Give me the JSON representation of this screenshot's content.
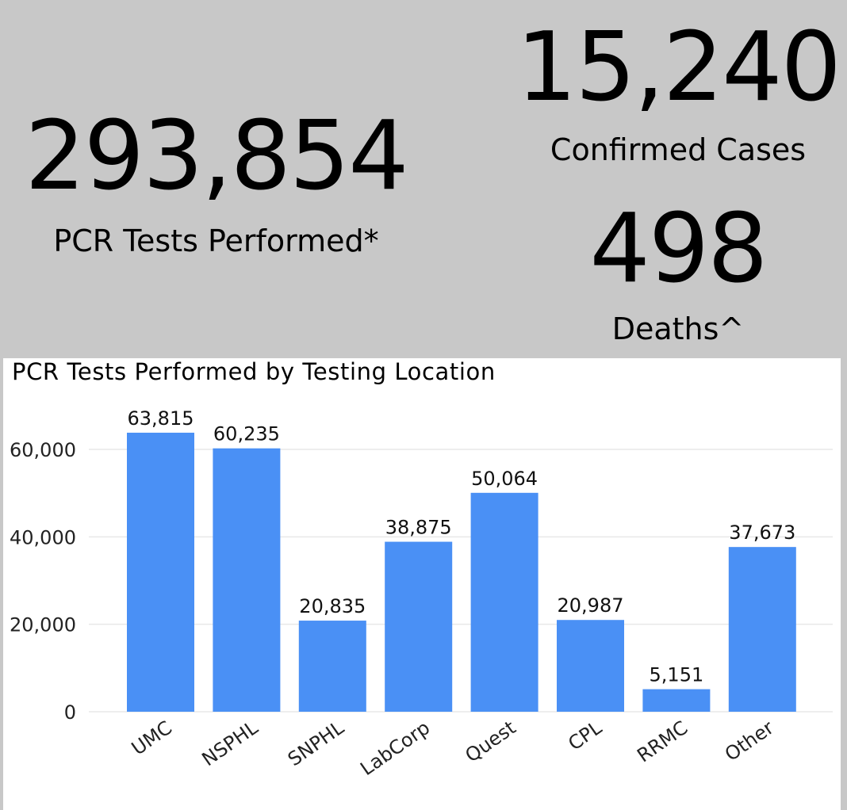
{
  "kpis": {
    "tests": {
      "value": "293,854",
      "label": "PCR Tests Performed*"
    },
    "cases": {
      "value": "15,240",
      "label": "Confirmed Cases"
    },
    "deaths": {
      "value": "498",
      "label": "Deaths^"
    }
  },
  "chart_data": {
    "type": "bar",
    "title": "PCR Tests Performed by Testing Location",
    "xlabel": "",
    "ylabel": "",
    "categories": [
      "UMC",
      "NSPHL",
      "SNPHL",
      "LabCorp",
      "Quest",
      "CPL",
      "RRMC",
      "Other"
    ],
    "values": [
      63815,
      60235,
      20835,
      38875,
      50064,
      20987,
      5151,
      37673
    ],
    "value_labels": [
      "63,815",
      "60,235",
      "20,835",
      "38,875",
      "50,064",
      "20,987",
      "5,151",
      "37,673"
    ],
    "y_ticks": [
      0,
      20000,
      40000,
      60000
    ],
    "y_tick_labels": [
      "0",
      "20,000",
      "40,000",
      "60,000"
    ],
    "ylim": [
      0,
      63815
    ],
    "grid": true,
    "bar_color": "#4a90f5",
    "grid_color": "#e8e8e8"
  }
}
